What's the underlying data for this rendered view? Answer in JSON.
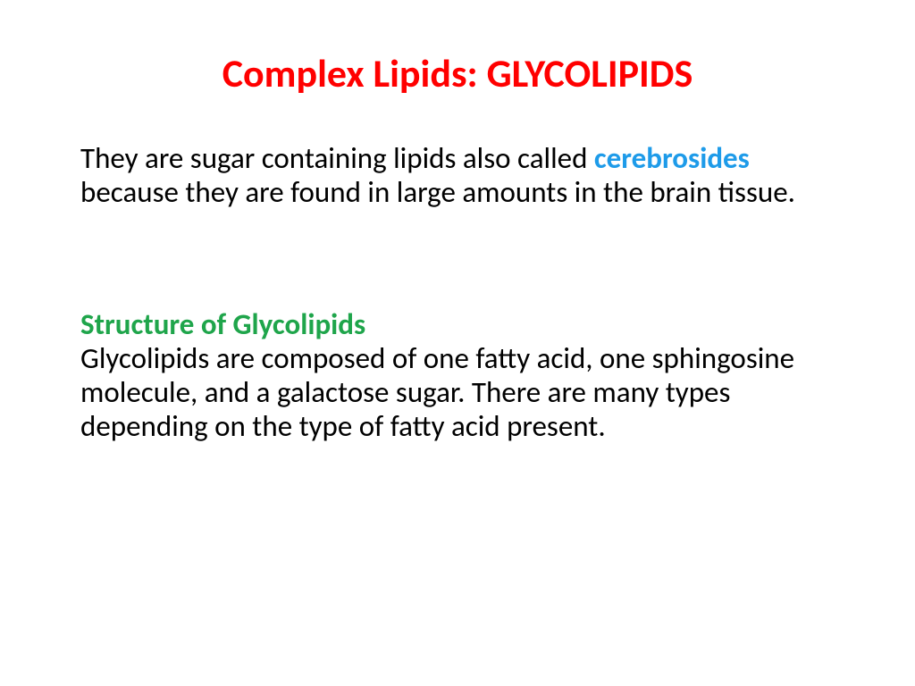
{
  "slide": {
    "title": "Complex Lipids: GLYCOLIPIDS",
    "title_color": "#ff0000",
    "title_fontsize": 44,
    "para1_pre": "They are sugar containing lipids also called ",
    "para1_keyword": "cerebrosides",
    "para1_keyword_color": "#1e9be9",
    "para1_post": " because they are found in large amounts in the brain tissue.",
    "subheading": "Structure of Glycolipids",
    "subheading_color": "#1fa54b",
    "para2": "Glycolipids are composed of one fatty acid, one sphingosine molecule, and a galactose sugar. There are many types depending on the type of fatty acid present.",
    "body_color": "#000000",
    "body_fontsize": 33,
    "background_color": "#ffffff"
  }
}
